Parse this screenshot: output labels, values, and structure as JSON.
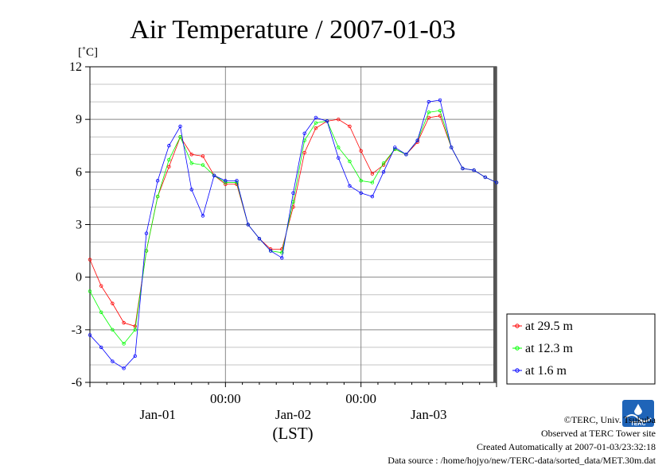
{
  "chart_data": {
    "type": "line",
    "title": "Air Temperature / 2007-01-03",
    "ylabel": "[˚C]",
    "xlabel": "(LST)",
    "ylim": [
      -6,
      12
    ],
    "yticks": [
      12,
      9,
      6,
      3,
      0,
      -3,
      -6
    ],
    "xlim_hours": [
      -24,
      48
    ],
    "x_time_labels": [
      {
        "hour": 0,
        "label": "00:00"
      },
      {
        "hour": 24,
        "label": "00:00"
      }
    ],
    "x_date_labels": [
      {
        "hour": -12,
        "label": "Jan-01"
      },
      {
        "hour": 12,
        "label": "Jan-02"
      },
      {
        "hour": 36,
        "label": "Jan-03"
      }
    ],
    "grid": true,
    "legend_position": "bottom-right-outside",
    "x_hours": [
      -24,
      -22,
      -20,
      -18,
      -16,
      -14,
      -12,
      -10,
      -8,
      -6,
      -4,
      -2,
      0,
      2,
      4,
      6,
      8,
      10,
      12,
      14,
      16,
      18,
      20,
      22,
      24,
      26,
      28,
      30,
      32,
      34,
      36,
      38,
      40,
      42,
      44,
      46,
      48
    ],
    "series": [
      {
        "name": "at 29.5 m",
        "color": "#ff0000",
        "values": [
          1.0,
          -0.5,
          -1.5,
          -2.6,
          -2.8,
          1.5,
          4.6,
          6.3,
          8.0,
          7.0,
          6.9,
          5.8,
          5.3,
          5.3,
          3.0,
          2.2,
          1.6,
          1.6,
          4.0,
          7.1,
          8.5,
          8.9,
          9.0,
          8.6,
          7.2,
          5.9,
          6.4,
          7.3,
          7.0,
          7.7,
          9.1,
          9.2,
          7.4,
          6.2,
          6.1,
          5.7,
          5.4
        ]
      },
      {
        "name": "at 12.3 m",
        "color": "#00ff00",
        "values": [
          -0.8,
          -2.0,
          -3.0,
          -3.8,
          -3.0,
          1.5,
          4.6,
          6.7,
          8.0,
          6.5,
          6.4,
          5.8,
          5.4,
          5.4,
          3.0,
          2.2,
          1.5,
          1.4,
          4.3,
          7.8,
          8.8,
          8.9,
          7.4,
          6.6,
          5.5,
          5.4,
          6.5,
          7.3,
          7.0,
          7.8,
          9.4,
          9.5,
          7.4,
          6.2,
          6.1,
          5.7,
          5.4
        ]
      },
      {
        "name": "at 1.6 m",
        "color": "#0000ff",
        "values": [
          -3.3,
          -4.0,
          -4.8,
          -5.2,
          -4.5,
          2.5,
          5.5,
          7.5,
          8.6,
          5.0,
          3.5,
          5.8,
          5.5,
          5.5,
          3.0,
          2.2,
          1.5,
          1.1,
          4.8,
          8.2,
          9.1,
          8.9,
          6.8,
          5.2,
          4.8,
          4.6,
          6.0,
          7.4,
          7.0,
          7.8,
          10.0,
          10.1,
          7.4,
          6.2,
          6.1,
          5.7,
          5.4
        ]
      }
    ]
  },
  "credits": {
    "copyright": "©TERC, Univ. Tsukuba",
    "observed": "Observed at TERC Tower site",
    "created": "Created Automatically at 2007-01-03/23:32:18",
    "source": "Data source : /home/hojyo/new/TERC-data/sorted_data/MET.30m.dat"
  },
  "logo": {
    "text": "TERC",
    "color": "#1f64b8"
  }
}
